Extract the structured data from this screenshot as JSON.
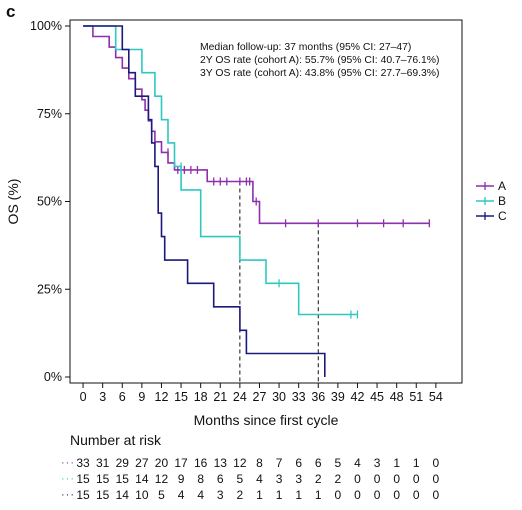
{
  "panel_label": "c",
  "chart_data": {
    "type": "line",
    "subtype": "kaplan-meier",
    "xlabel": "Months since first cycle",
    "ylabel": "OS (%)",
    "xlim": [
      -2,
      58
    ],
    "ylim": [
      0,
      100
    ],
    "xticks": [
      0,
      3,
      6,
      9,
      12,
      15,
      18,
      21,
      24,
      27,
      30,
      33,
      36,
      39,
      42,
      45,
      48,
      51,
      54
    ],
    "yticks": [
      0,
      25,
      50,
      75,
      100
    ],
    "ytick_labels": [
      "0%",
      "25%",
      "50%",
      "75%",
      "100%"
    ],
    "legend_position": "right",
    "annotations": [
      "Median follow-up: 37 months (95% CI: 27–47)",
      "2Y OS rate (cohort A): 55.7% (95% CI: 40.7–76.1%)",
      "3Y OS rate (cohort A): 43.8% (95% CI: 27.7–69.3%)"
    ],
    "reference_lines": [
      {
        "x": 24,
        "y": 55.7
      },
      {
        "x": 36,
        "y": 43.8
      }
    ],
    "series": [
      {
        "name": "A",
        "color": "#8e2fae",
        "steps": [
          [
            0,
            100
          ],
          [
            1.5,
            100
          ],
          [
            1.5,
            97
          ],
          [
            4,
            97
          ],
          [
            4,
            94
          ],
          [
            5,
            94
          ],
          [
            5,
            91
          ],
          [
            6,
            91
          ],
          [
            6,
            88
          ],
          [
            7,
            88
          ],
          [
            7,
            85
          ],
          [
            8,
            85
          ],
          [
            8,
            82
          ],
          [
            9,
            82
          ],
          [
            9,
            79
          ],
          [
            9.5,
            79
          ],
          [
            9.5,
            76
          ],
          [
            10,
            76
          ],
          [
            10,
            73
          ],
          [
            10.5,
            73
          ],
          [
            10.5,
            70
          ],
          [
            11,
            70
          ],
          [
            11,
            67
          ],
          [
            12,
            67
          ],
          [
            12,
            64
          ],
          [
            13,
            64
          ],
          [
            13,
            61
          ],
          [
            14,
            61
          ],
          [
            14,
            59
          ],
          [
            19,
            59
          ],
          [
            19,
            55.7
          ],
          [
            26,
            55.7
          ],
          [
            26,
            50
          ],
          [
            27,
            50
          ],
          [
            27,
            43.8
          ],
          [
            53,
            43.8
          ]
        ],
        "censor": [
          [
            13,
            64
          ],
          [
            14.5,
            59
          ],
          [
            15.5,
            59
          ],
          [
            16.5,
            59
          ],
          [
            17.5,
            59
          ],
          [
            20,
            55.7
          ],
          [
            21,
            55.7
          ],
          [
            22,
            55.7
          ],
          [
            24,
            55.7
          ],
          [
            25,
            55.7
          ],
          [
            25.5,
            55.7
          ],
          [
            26.5,
            50
          ],
          [
            31,
            43.8
          ],
          [
            36,
            43.8
          ],
          [
            42,
            43.8
          ],
          [
            46,
            43.8
          ],
          [
            49,
            43.8
          ],
          [
            53,
            43.8
          ]
        ]
      },
      {
        "name": "B",
        "color": "#2ec8c0",
        "steps": [
          [
            0,
            100
          ],
          [
            5,
            100
          ],
          [
            5,
            93.3
          ],
          [
            9,
            93.3
          ],
          [
            9,
            86.7
          ],
          [
            11,
            86.7
          ],
          [
            11,
            80
          ],
          [
            12,
            80
          ],
          [
            12,
            73.3
          ],
          [
            13,
            73.3
          ],
          [
            13,
            66.7
          ],
          [
            14,
            66.7
          ],
          [
            14,
            60
          ],
          [
            15,
            60
          ],
          [
            15,
            53.3
          ],
          [
            18,
            53.3
          ],
          [
            18,
            40
          ],
          [
            24,
            40
          ],
          [
            24,
            33.3
          ],
          [
            28,
            33.3
          ],
          [
            28,
            26.7
          ],
          [
            33,
            26.7
          ],
          [
            33,
            17.8
          ],
          [
            42,
            17.8
          ]
        ],
        "censor": [
          [
            15,
            60
          ],
          [
            30,
            26.7
          ],
          [
            41,
            17.8
          ],
          [
            42,
            17.8
          ]
        ]
      },
      {
        "name": "C",
        "color": "#1b1a7a",
        "steps": [
          [
            0,
            100
          ],
          [
            6,
            100
          ],
          [
            6,
            93.3
          ],
          [
            7,
            93.3
          ],
          [
            7,
            86.7
          ],
          [
            8,
            86.7
          ],
          [
            8,
            80
          ],
          [
            10,
            80
          ],
          [
            10,
            73.3
          ],
          [
            10.5,
            73.3
          ],
          [
            10.5,
            66.7
          ],
          [
            11,
            66.7
          ],
          [
            11,
            60
          ],
          [
            11.5,
            60
          ],
          [
            11.5,
            46.7
          ],
          [
            12,
            46.7
          ],
          [
            12,
            40
          ],
          [
            12.5,
            40
          ],
          [
            12.5,
            33.3
          ],
          [
            16,
            33.3
          ],
          [
            16,
            26.7
          ],
          [
            20,
            26.7
          ],
          [
            20,
            20
          ],
          [
            24,
            20
          ],
          [
            24,
            13.3
          ],
          [
            25,
            13.3
          ],
          [
            25,
            6.7
          ],
          [
            37,
            6.7
          ],
          [
            37,
            0
          ]
        ],
        "censor": []
      }
    ]
  },
  "risk_table": {
    "title": "Number at risk",
    "rows": [
      {
        "name": "A",
        "values": [
          "33",
          "31",
          "29",
          "27",
          "20",
          "17",
          "16",
          "13",
          "12",
          "8",
          "7",
          "6",
          "6",
          "5",
          "4",
          "3",
          "1",
          "1",
          "0"
        ]
      },
      {
        "name": "B",
        "values": [
          "15",
          "15",
          "15",
          "14",
          "12",
          "9",
          "8",
          "6",
          "5",
          "4",
          "3",
          "3",
          "2",
          "2",
          "0",
          "0",
          "0",
          "0",
          "0"
        ]
      },
      {
        "name": "C",
        "values": [
          "15",
          "15",
          "14",
          "10",
          "5",
          "4",
          "4",
          "3",
          "2",
          "1",
          "1",
          "1",
          "1",
          "0",
          "0",
          "0",
          "0",
          "0",
          "0"
        ]
      }
    ]
  }
}
